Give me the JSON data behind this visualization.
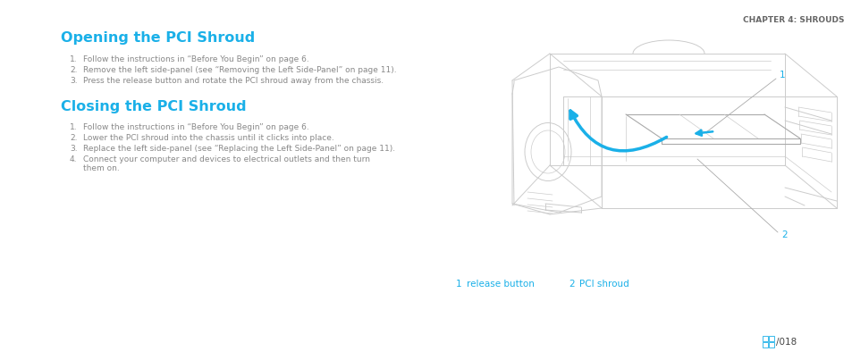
{
  "bg_color": "#ffffff",
  "chapter_header": "CHAPTER 4: SHROUDS",
  "chapter_header_color": "#666666",
  "chapter_header_fontsize": 6.5,
  "title1": "Opening the PCI Shroud",
  "title1_color": "#1ab0e8",
  "title1_fontsize": 11.5,
  "title2": "Closing the PCI Shroud",
  "title2_color": "#1ab0e8",
  "title2_fontsize": 11.5,
  "opening_steps": [
    "Follow the instructions in “Before You Begin” on page 6.",
    "Remove the left side-panel (see “Removing the Left Side-Panel” on page 11).",
    "Press the release button and rotate the PCI shroud away from the chassis."
  ],
  "closing_steps": [
    "Follow the instructions in “Before You Begin” on page 6.",
    "Lower the PCI shroud into the chassis until it clicks into place.",
    "Replace the left side-panel (see “Replacing the Left Side-Panel” on page 11).",
    "Connect your computer and devices to electrical outlets and then turn\nthem on."
  ],
  "step_fontsize": 6.5,
  "step_color": "#888888",
  "num_color": "#888888",
  "label_num_color": "#1ab0e8",
  "label_num_fontsize": 7.5,
  "legend_color": "#1ab0e8",
  "legend_fontsize": 7.5,
  "page_num": "/018",
  "page_num_color": "#444444",
  "page_icon_color": "#1ab0e8",
  "page_fontsize": 7.5,
  "line_color": "#cccccc",
  "arrow_color": "#1ab0e8"
}
